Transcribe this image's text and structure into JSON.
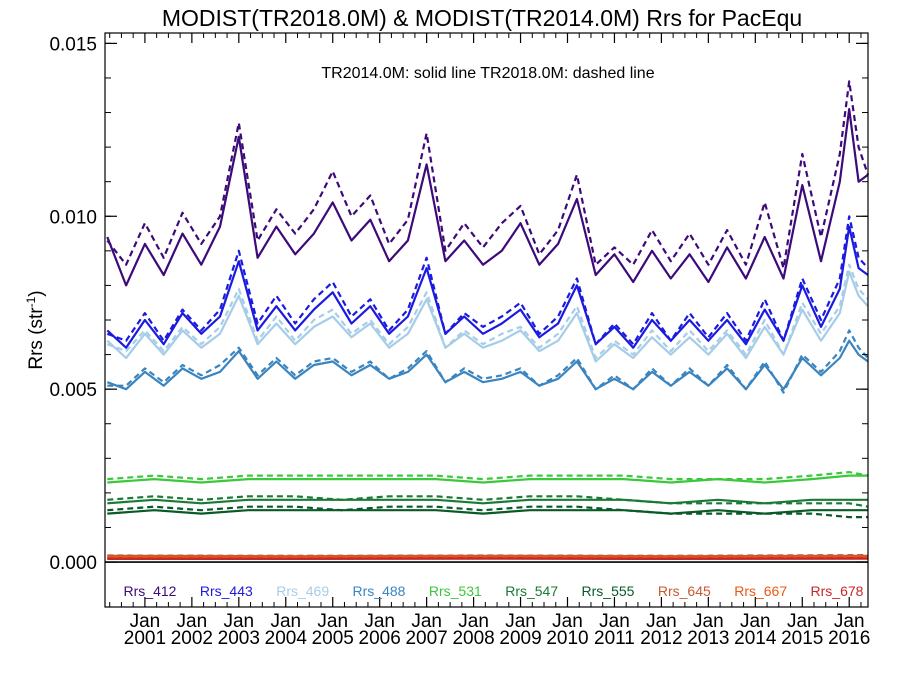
{
  "chart_data": {
    "type": "line",
    "title": "MODIST(TR2018.0M) & MODIST(TR2014.0M)  Rrs for PacEqu",
    "annotation": "TR2014.0M: solid line   TR2018.0M: dashed line",
    "ylabel": "Rrs (str",
    "ylabel_sup": "-1",
    "ylabel_end": ")",
    "xlim": [
      2000.15,
      2016.4
    ],
    "ylim": [
      -0.0013,
      0.0153
    ],
    "yticks": [
      0.0,
      0.005,
      0.01,
      0.015
    ],
    "ytick_labels": [
      "0.000",
      "0.005",
      "0.010",
      "0.015"
    ],
    "xticks": [
      2001,
      2002,
      2003,
      2004,
      2005,
      2006,
      2007,
      2008,
      2009,
      2010,
      2011,
      2012,
      2013,
      2014,
      2015,
      2016
    ],
    "xtick_month": "Jan",
    "xtick_labels": [
      "2001",
      "2002",
      "2003",
      "2004",
      "2005",
      "2006",
      "2007",
      "2008",
      "2009",
      "2010",
      "2011",
      "2012",
      "2013",
      "2014",
      "2015",
      "2016"
    ],
    "zero_line": true,
    "grid": false,
    "legend_position": "bottom",
    "line_styles": {
      "TR2014.0M": "solid",
      "TR2018.0M": "dashed"
    },
    "series": [
      {
        "name": "Rrs_412",
        "color": "#3d0a7a",
        "x": [
          2000.2,
          2000.6,
          2001.0,
          2001.4,
          2001.8,
          2002.2,
          2002.6,
          2003.0,
          2003.4,
          2003.8,
          2004.2,
          2004.6,
          2005.0,
          2005.4,
          2005.8,
          2006.2,
          2006.6,
          2007.0,
          2007.4,
          2007.8,
          2008.2,
          2008.6,
          2009.0,
          2009.4,
          2009.8,
          2010.2,
          2010.6,
          2011.0,
          2011.4,
          2011.8,
          2012.2,
          2012.6,
          2013.0,
          2013.4,
          2013.8,
          2014.2,
          2014.6,
          2015.0,
          2015.4,
          2015.8,
          2016.0,
          2016.2,
          2016.4
        ],
        "solid": [
          0.0094,
          0.008,
          0.0092,
          0.0083,
          0.0095,
          0.0086,
          0.0097,
          0.0123,
          0.0088,
          0.0097,
          0.0089,
          0.0095,
          0.0104,
          0.0093,
          0.0099,
          0.0087,
          0.0093,
          0.0115,
          0.0087,
          0.0093,
          0.0086,
          0.009,
          0.0098,
          0.0086,
          0.0092,
          0.0105,
          0.0083,
          0.0089,
          0.0081,
          0.009,
          0.0082,
          0.0089,
          0.0081,
          0.0091,
          0.0082,
          0.0094,
          0.0082,
          0.0109,
          0.0087,
          0.011,
          0.0131,
          0.011,
          0.0112
        ],
        "dashed": [
          0.0093,
          0.0086,
          0.0098,
          0.0088,
          0.0101,
          0.0092,
          0.01,
          0.0127,
          0.0093,
          0.0102,
          0.0095,
          0.0102,
          0.0113,
          0.01,
          0.0106,
          0.0092,
          0.0099,
          0.0124,
          0.009,
          0.0098,
          0.0091,
          0.0098,
          0.0103,
          0.0089,
          0.0096,
          0.0112,
          0.0086,
          0.0091,
          0.0086,
          0.0096,
          0.0087,
          0.0095,
          0.0086,
          0.0096,
          0.0086,
          0.0104,
          0.0085,
          0.0118,
          0.0094,
          0.0118,
          0.0139,
          0.012,
          0.0112
        ]
      },
      {
        "name": "Rrs_443",
        "color": "#1a1ae0",
        "x": [
          2000.2,
          2000.6,
          2001.0,
          2001.4,
          2001.8,
          2002.2,
          2002.6,
          2003.0,
          2003.4,
          2003.8,
          2004.2,
          2004.6,
          2005.0,
          2005.4,
          2005.8,
          2006.2,
          2006.6,
          2007.0,
          2007.4,
          2007.8,
          2008.2,
          2008.6,
          2009.0,
          2009.4,
          2009.8,
          2010.2,
          2010.6,
          2011.0,
          2011.4,
          2011.8,
          2012.2,
          2012.6,
          2013.0,
          2013.4,
          2013.8,
          2014.2,
          2014.6,
          2015.0,
          2015.4,
          2015.8,
          2016.0,
          2016.2,
          2016.4
        ],
        "solid": [
          0.0067,
          0.0062,
          0.007,
          0.0063,
          0.0072,
          0.0066,
          0.0071,
          0.0087,
          0.0067,
          0.0074,
          0.0067,
          0.0073,
          0.0078,
          0.0069,
          0.0074,
          0.0066,
          0.0071,
          0.0085,
          0.0066,
          0.0071,
          0.0066,
          0.0069,
          0.0073,
          0.0065,
          0.0069,
          0.008,
          0.0063,
          0.0068,
          0.0062,
          0.007,
          0.0064,
          0.007,
          0.0064,
          0.007,
          0.0063,
          0.0073,
          0.0064,
          0.008,
          0.0068,
          0.0079,
          0.0097,
          0.0085,
          0.0083
        ],
        "dashed": [
          0.0066,
          0.0064,
          0.0072,
          0.0064,
          0.0073,
          0.0067,
          0.0073,
          0.009,
          0.0069,
          0.0077,
          0.0069,
          0.0076,
          0.0081,
          0.0071,
          0.0076,
          0.0067,
          0.0073,
          0.0088,
          0.0066,
          0.0072,
          0.0068,
          0.0071,
          0.0075,
          0.0066,
          0.0071,
          0.0082,
          0.0063,
          0.0069,
          0.0063,
          0.0072,
          0.0064,
          0.0072,
          0.0065,
          0.0072,
          0.0064,
          0.0076,
          0.0064,
          0.0082,
          0.007,
          0.0082,
          0.01,
          0.0088,
          0.0085
        ]
      },
      {
        "name": "Rrs_469",
        "color": "#a6cde8",
        "x": [
          2000.2,
          2000.6,
          2001.0,
          2001.4,
          2001.8,
          2002.2,
          2002.6,
          2003.0,
          2003.4,
          2003.8,
          2004.2,
          2004.6,
          2005.0,
          2005.4,
          2005.8,
          2006.2,
          2006.6,
          2007.0,
          2007.4,
          2007.8,
          2008.2,
          2008.6,
          2009.0,
          2009.4,
          2009.8,
          2010.2,
          2010.6,
          2011.0,
          2011.4,
          2011.8,
          2012.2,
          2012.6,
          2013.0,
          2013.4,
          2013.8,
          2014.2,
          2014.6,
          2015.0,
          2015.4,
          2015.8,
          2016.0,
          2016.2,
          2016.4
        ],
        "solid": [
          0.0064,
          0.0059,
          0.0066,
          0.006,
          0.0067,
          0.0062,
          0.0066,
          0.0077,
          0.0063,
          0.0069,
          0.0063,
          0.0068,
          0.0071,
          0.0065,
          0.0069,
          0.0062,
          0.0066,
          0.0076,
          0.0062,
          0.0066,
          0.0062,
          0.0064,
          0.0067,
          0.0061,
          0.0064,
          0.0072,
          0.0058,
          0.0063,
          0.0059,
          0.0065,
          0.006,
          0.0065,
          0.006,
          0.0066,
          0.0059,
          0.0068,
          0.006,
          0.0073,
          0.0064,
          0.0072,
          0.0084,
          0.0077,
          0.0074
        ],
        "dashed": [
          0.0063,
          0.0061,
          0.0067,
          0.0061,
          0.0068,
          0.0063,
          0.0068,
          0.0079,
          0.0064,
          0.0071,
          0.0064,
          0.007,
          0.0073,
          0.0066,
          0.007,
          0.0063,
          0.0068,
          0.0078,
          0.0062,
          0.0067,
          0.0063,
          0.0066,
          0.0068,
          0.0062,
          0.0066,
          0.0074,
          0.0059,
          0.0064,
          0.006,
          0.0067,
          0.0061,
          0.0067,
          0.0061,
          0.0067,
          0.006,
          0.007,
          0.006,
          0.0075,
          0.0066,
          0.0074,
          0.0086,
          0.0079,
          0.0076
        ]
      },
      {
        "name": "Rrs_488",
        "color": "#3a85c0",
        "x": [
          2000.2,
          2000.6,
          2001.0,
          2001.4,
          2001.8,
          2002.2,
          2002.6,
          2003.0,
          2003.4,
          2003.8,
          2004.2,
          2004.6,
          2005.0,
          2005.4,
          2005.8,
          2006.2,
          2006.6,
          2007.0,
          2007.4,
          2007.8,
          2008.2,
          2008.6,
          2009.0,
          2009.4,
          2009.8,
          2010.2,
          2010.6,
          2011.0,
          2011.4,
          2011.8,
          2012.2,
          2012.6,
          2013.0,
          2013.4,
          2013.8,
          2014.2,
          2014.6,
          2015.0,
          2015.4,
          2015.8,
          2016.0,
          2016.2,
          2016.4
        ],
        "solid": [
          0.0052,
          0.005,
          0.0055,
          0.0051,
          0.0056,
          0.0053,
          0.0055,
          0.0061,
          0.0053,
          0.0058,
          0.0053,
          0.0057,
          0.0058,
          0.0054,
          0.0057,
          0.0053,
          0.0055,
          0.006,
          0.0052,
          0.0055,
          0.0052,
          0.0053,
          0.0055,
          0.0051,
          0.0053,
          0.0058,
          0.005,
          0.0053,
          0.005,
          0.0055,
          0.0051,
          0.0055,
          0.0051,
          0.0056,
          0.005,
          0.0057,
          0.005,
          0.0059,
          0.0054,
          0.0059,
          0.0064,
          0.006,
          0.0058
        ],
        "dashed": [
          0.0051,
          0.0051,
          0.0056,
          0.0052,
          0.0057,
          0.0054,
          0.0057,
          0.0062,
          0.0054,
          0.0059,
          0.0054,
          0.0058,
          0.0059,
          0.0055,
          0.0058,
          0.0053,
          0.0056,
          0.0061,
          0.0052,
          0.0056,
          0.0053,
          0.0054,
          0.0056,
          0.0051,
          0.0054,
          0.0059,
          0.005,
          0.0054,
          0.005,
          0.0056,
          0.0051,
          0.0056,
          0.0051,
          0.0057,
          0.005,
          0.0058,
          0.0049,
          0.006,
          0.0055,
          0.0061,
          0.0067,
          0.0062,
          0.0059
        ]
      },
      {
        "name": "Rrs_531",
        "color": "#3cc83c",
        "x": [
          2000.2,
          2001.2,
          2002.2,
          2003.2,
          2004.2,
          2005.2,
          2006.2,
          2007.2,
          2008.2,
          2009.2,
          2010.2,
          2011.2,
          2012.2,
          2013.2,
          2014.2,
          2015.2,
          2016.0,
          2016.4
        ],
        "solid": [
          0.0023,
          0.0024,
          0.0023,
          0.0024,
          0.0024,
          0.0024,
          0.0024,
          0.0024,
          0.0023,
          0.0024,
          0.0024,
          0.0024,
          0.0023,
          0.0024,
          0.0023,
          0.0024,
          0.0025,
          0.0025
        ],
        "dashed": [
          0.0024,
          0.0025,
          0.0024,
          0.0025,
          0.0025,
          0.0025,
          0.0025,
          0.0025,
          0.0024,
          0.0025,
          0.0025,
          0.0025,
          0.0024,
          0.0024,
          0.0024,
          0.0025,
          0.0026,
          0.0025
        ]
      },
      {
        "name": "Rrs_547",
        "color": "#1a7a35",
        "x": [
          2000.2,
          2001.2,
          2002.2,
          2003.2,
          2004.2,
          2005.2,
          2006.2,
          2007.2,
          2008.2,
          2009.2,
          2010.2,
          2011.2,
          2012.2,
          2013.2,
          2014.2,
          2015.2,
          2016.0,
          2016.4
        ],
        "solid": [
          0.0017,
          0.0018,
          0.0017,
          0.0018,
          0.0018,
          0.0018,
          0.0018,
          0.0018,
          0.0017,
          0.0018,
          0.0018,
          0.0018,
          0.0017,
          0.0018,
          0.0017,
          0.0018,
          0.0018,
          0.0018
        ],
        "dashed": [
          0.0018,
          0.0019,
          0.0018,
          0.0019,
          0.0019,
          0.0018,
          0.0019,
          0.0019,
          0.0018,
          0.0019,
          0.0019,
          0.0018,
          0.0017,
          0.0017,
          0.0017,
          0.0017,
          0.0017,
          0.0016
        ]
      },
      {
        "name": "Rrs_555",
        "color": "#0a5a28",
        "x": [
          2000.2,
          2001.2,
          2002.2,
          2003.2,
          2004.2,
          2005.2,
          2006.2,
          2007.2,
          2008.2,
          2009.2,
          2010.2,
          2011.2,
          2012.2,
          2013.2,
          2014.2,
          2015.2,
          2016.0,
          2016.4
        ],
        "solid": [
          0.0014,
          0.0015,
          0.0014,
          0.0015,
          0.0015,
          0.0015,
          0.0015,
          0.0015,
          0.0014,
          0.0015,
          0.0015,
          0.0015,
          0.0014,
          0.0015,
          0.0014,
          0.0015,
          0.0015,
          0.0015
        ],
        "dashed": [
          0.0015,
          0.0016,
          0.0015,
          0.0016,
          0.0016,
          0.0015,
          0.0016,
          0.0016,
          0.0015,
          0.0016,
          0.0016,
          0.0015,
          0.0014,
          0.0014,
          0.0014,
          0.0014,
          0.0013,
          0.0013
        ]
      },
      {
        "name": "Rrs_645",
        "color": "#c85a32",
        "x": [
          2000.2,
          2004.2,
          2008.2,
          2012.2,
          2016.4
        ],
        "solid": [
          0.00018,
          0.00017,
          0.00018,
          0.00017,
          0.00018
        ],
        "dashed": [
          0.00019,
          0.00018,
          0.00019,
          0.00018,
          0.0002
        ]
      },
      {
        "name": "Rrs_667",
        "color": "#e85a14",
        "x": [
          2000.2,
          2004.2,
          2008.2,
          2012.2,
          2016.4
        ],
        "solid": [
          0.00012,
          0.00012,
          0.00013,
          0.00012,
          0.00013
        ],
        "dashed": [
          0.00013,
          0.00013,
          0.00014,
          0.00013,
          0.00014
        ]
      },
      {
        "name": "Rrs_678",
        "color": "#c82828",
        "x": [
          2000.2,
          2004.2,
          2008.2,
          2012.2,
          2016.4
        ],
        "solid": [
          9e-05,
          9e-05,
          0.0001,
          9e-05,
          0.0001
        ],
        "dashed": [
          0.0001,
          0.0001,
          0.00011,
          0.0001,
          0.00011
        ]
      }
    ]
  }
}
